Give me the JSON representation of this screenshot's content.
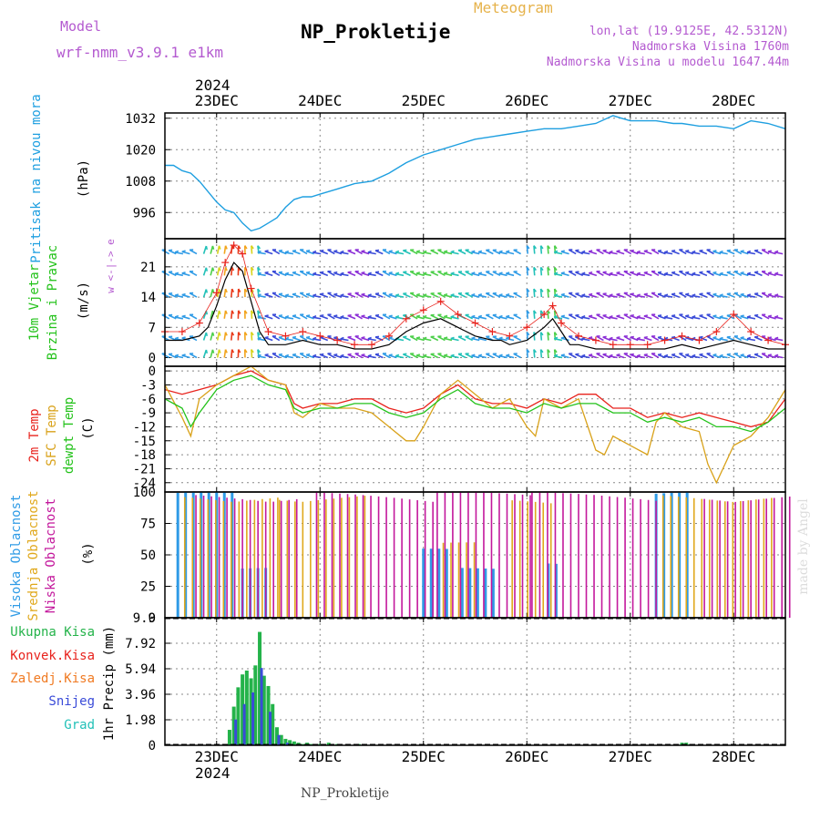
{
  "header": {
    "model_label": "Model",
    "model_name": "wrf-nmm_v3.9.1  e1km",
    "meteogram_label": "Meteogram",
    "station_title": "NP_Prokletije",
    "lonlat": "lon,lat (19.9125E, 42.5312N)",
    "elevation": "Nadmorska Visina 1760m",
    "model_elevation": "Nadmorska Visina u modelu 1647.44m"
  },
  "footer": {
    "station": "NP_Prokletije",
    "credit": "made by Angel"
  },
  "colors": {
    "pressure": "#1e9fe0",
    "temp2m": "#e8231d",
    "sfc_temp": "#d9a21a",
    "dewpt": "#23c21a",
    "high_cloud": "#2f9be6",
    "mid_cloud": "#e0a81c",
    "low_cloud": "#c3189c",
    "total_precip": "#24b34a",
    "conv_precip": "#e8231d",
    "frozen_precip": "#f07a22",
    "snow": "#3a4bd8",
    "graupel": "#22c1b8"
  },
  "time_axis": {
    "year": "2024",
    "days": [
      "23DEC",
      "24DEC",
      "25DEC",
      "26DEC",
      "27DEC",
      "28DEC"
    ],
    "day_offsets_h": [
      12,
      36,
      60,
      84,
      108,
      132
    ],
    "range_h": [
      0,
      144
    ]
  },
  "chart_data": [
    {
      "type": "line",
      "title": "",
      "ylabel_side": "Pritisak na nivou mora",
      "ylabel_unit": "(hPa)",
      "yticks": [
        "1032",
        "1020",
        "1008",
        "996"
      ],
      "ytick_values": [
        1032,
        1020,
        1008,
        996
      ],
      "ylim": [
        986,
        1034
      ],
      "grid": true,
      "series": [
        {
          "x_h": [
            0,
            2,
            4,
            6,
            8,
            10,
            12,
            14,
            16,
            18,
            20,
            22,
            24,
            26,
            28,
            30,
            32,
            34,
            36,
            40,
            44,
            48,
            52,
            56,
            60,
            64,
            68,
            72,
            76,
            80,
            84,
            88,
            92,
            96,
            100,
            104,
            106,
            108,
            110,
            114,
            118,
            120,
            124,
            128,
            132,
            136,
            140,
            144
          ],
          "values": [
            1014,
            1014,
            1012,
            1011,
            1008,
            1004,
            1000,
            997,
            996,
            992,
            989,
            990,
            992,
            994,
            998,
            1001,
            1002,
            1002,
            1003,
            1005,
            1007,
            1008,
            1011,
            1015,
            1018,
            1020,
            1022,
            1024,
            1025,
            1026,
            1027,
            1028,
            1028,
            1029,
            1030,
            1033,
            1032,
            1031,
            1031,
            1031,
            1030,
            1030,
            1029,
            1029,
            1028,
            1031,
            1030,
            1028
          ]
        }
      ]
    },
    {
      "type": "line",
      "title": "",
      "ylabel_side": [
        "10m Vjetar",
        "Brzina i Pravac"
      ],
      "ylabel_unit": "(m/s)",
      "direction_key": "w <-|-> e",
      "yticks": [
        "21",
        "14",
        "7",
        "0"
      ],
      "ytick_values": [
        21,
        14,
        7,
        0
      ],
      "ylim": [
        -2,
        27.5
      ],
      "grid": true,
      "series": [
        {
          "name": "wind speed",
          "x_h": [
            0,
            4,
            8,
            10,
            12,
            14,
            16,
            18,
            20,
            22,
            24,
            28,
            32,
            36,
            40,
            44,
            48,
            52,
            56,
            60,
            64,
            68,
            72,
            76,
            78,
            80,
            84,
            88,
            90,
            92,
            94,
            96,
            100,
            104,
            108,
            112,
            116,
            120,
            124,
            128,
            132,
            136,
            140,
            144
          ],
          "values": [
            4,
            4,
            5,
            7,
            12,
            18,
            22,
            20,
            13,
            6,
            3,
            3,
            4,
            3,
            3,
            2,
            2,
            3,
            6,
            8,
            9,
            7,
            5,
            4,
            4,
            3,
            4,
            7,
            9,
            6,
            3,
            3,
            2,
            2,
            2,
            2,
            2,
            3,
            2,
            3,
            4,
            3,
            2,
            2
          ]
        },
        {
          "name": "wind gust",
          "x_h": [
            0,
            4,
            8,
            12,
            14,
            16,
            18,
            20,
            24,
            28,
            32,
            36,
            40,
            44,
            48,
            52,
            56,
            60,
            64,
            68,
            72,
            76,
            80,
            84,
            88,
            90,
            92,
            96,
            100,
            104,
            108,
            112,
            116,
            120,
            124,
            128,
            132,
            136,
            140,
            144
          ],
          "values": [
            6,
            6,
            8,
            15,
            22,
            26,
            24,
            16,
            6,
            5,
            6,
            5,
            4,
            3,
            3,
            5,
            9,
            11,
            13,
            10,
            8,
            6,
            5,
            7,
            10,
            12,
            8,
            5,
            4,
            3,
            3,
            3,
            4,
            5,
            4,
            6,
            10,
            6,
            4,
            3
          ]
        }
      ]
    },
    {
      "type": "line",
      "title": "",
      "ylabel_side": [
        "2m Temp",
        "SFC Temp",
        "dewpt Temp"
      ],
      "ylabel_unit": "(C)",
      "yticks": [
        "0",
        "-3",
        "-6",
        "-9",
        "-12",
        "-15",
        "-18",
        "-21",
        "-24"
      ],
      "ytick_values": [
        0,
        -3,
        -6,
        -9,
        -12,
        -15,
        -18,
        -21,
        -24
      ],
      "ylim": [
        -26,
        1
      ],
      "grid": true,
      "series": [
        {
          "name": "2m Temp",
          "x_h": [
            0,
            4,
            8,
            12,
            16,
            20,
            24,
            28,
            30,
            32,
            36,
            40,
            44,
            48,
            52,
            56,
            60,
            64,
            68,
            72,
            76,
            80,
            84,
            88,
            92,
            96,
            100,
            104,
            108,
            112,
            116,
            120,
            124,
            128,
            132,
            136,
            140,
            144
          ],
          "values": [
            -4,
            -5,
            -4,
            -3,
            -1,
            0,
            -2,
            -3,
            -7,
            -8,
            -7,
            -7,
            -6,
            -6,
            -8,
            -9,
            -8,
            -5,
            -3,
            -6,
            -7,
            -7,
            -8,
            -6,
            -7,
            -5,
            -5,
            -8,
            -8,
            -10,
            -9,
            -10,
            -9,
            -10,
            -11,
            -12,
            -11,
            -6
          ]
        },
        {
          "name": "SFC Temp",
          "x_h": [
            0,
            4,
            6,
            8,
            12,
            16,
            20,
            24,
            28,
            30,
            32,
            36,
            40,
            44,
            48,
            52,
            56,
            58,
            60,
            64,
            68,
            72,
            76,
            80,
            84,
            86,
            88,
            92,
            96,
            100,
            102,
            104,
            108,
            112,
            114,
            116,
            120,
            124,
            126,
            128,
            132,
            136,
            140,
            144
          ],
          "values": [
            -3,
            -10,
            -14,
            -6,
            -3,
            -1,
            1,
            -2,
            -3,
            -9,
            -10,
            -7,
            -8,
            -8,
            -9,
            -12,
            -15,
            -15,
            -12,
            -5,
            -2,
            -5,
            -8,
            -6,
            -12,
            -14,
            -6,
            -8,
            -6,
            -17,
            -18,
            -14,
            -16,
            -18,
            -11,
            -9,
            -12,
            -13,
            -20,
            -24,
            -16,
            -14,
            -10,
            -4
          ]
        },
        {
          "name": "dewpt Temp",
          "x_h": [
            0,
            4,
            6,
            8,
            12,
            16,
            20,
            24,
            28,
            30,
            32,
            36,
            40,
            44,
            48,
            52,
            56,
            60,
            64,
            68,
            72,
            76,
            80,
            84,
            88,
            92,
            96,
            100,
            104,
            108,
            112,
            116,
            120,
            124,
            128,
            132,
            136,
            140,
            144
          ],
          "values": [
            -6,
            -8,
            -12,
            -9,
            -4,
            -2,
            -1,
            -3,
            -4,
            -8,
            -9,
            -8,
            -8,
            -7,
            -7,
            -9,
            -10,
            -9,
            -6,
            -4,
            -7,
            -8,
            -8,
            -9,
            -7,
            -8,
            -7,
            -7,
            -9,
            -9,
            -11,
            -10,
            -11,
            -10,
            -12,
            -12,
            -13,
            -11,
            -8
          ]
        }
      ]
    },
    {
      "type": "bar",
      "title": "",
      "ylabel_side": [
        "Visoka Oblacnost",
        "Srednja Oblacnost",
        "Niska Oblacnost"
      ],
      "ylabel_unit": "(%)",
      "yticks": [
        "100",
        "75",
        "50",
        "25",
        "0"
      ],
      "ytick_values": [
        100,
        75,
        50,
        25,
        0
      ],
      "ylim": [
        0,
        100
      ],
      "grid": true,
      "series": [
        {
          "name": "Visoka Oblacnost",
          "segments": [
            [
              3,
              16,
              100
            ],
            [
              18,
              24,
              40
            ],
            [
              60,
              66,
              55
            ],
            [
              69,
              77,
              40
            ],
            [
              89,
              92,
              45
            ],
            [
              114,
              122,
              100
            ]
          ]
        },
        {
          "name": "Srednja Oblacnost",
          "segments": [
            [
              4,
              26,
              100
            ],
            [
              26,
              46,
              100
            ],
            [
              64,
              72,
              60
            ],
            [
              80,
              90,
              95
            ],
            [
              115,
              142,
              100
            ]
          ]
        },
        {
          "name": "Niska Oblacnost",
          "segments": [
            [
              6,
              30,
              100
            ],
            [
              34,
              62,
              100
            ],
            [
              62,
              84,
              100
            ],
            [
              84,
              114,
              100
            ],
            [
              124,
              144,
              100
            ]
          ]
        }
      ]
    },
    {
      "type": "bar",
      "title": "",
      "ylabel_side": [
        "Ukupna Kisa",
        "Konvek.Kisa",
        "Zaledj.Kisa",
        "Snijeg",
        "Grad"
      ],
      "ylabel_unit": "1hr Precip (mm)",
      "yticks": [
        "9.9",
        "7.92",
        "5.94",
        "3.96",
        "1.98",
        "0"
      ],
      "ytick_values": [
        9.9,
        7.92,
        5.94,
        3.96,
        1.98,
        0
      ],
      "ylim": [
        0,
        9.9
      ],
      "grid": true,
      "series": [
        {
          "name": "Ukupna Kisa",
          "x_h": [
            15,
            16,
            17,
            18,
            19,
            20,
            21,
            22,
            23,
            24,
            25,
            26,
            27,
            28,
            29,
            30,
            31,
            32,
            33,
            34,
            36,
            38,
            40,
            45,
            120,
            121,
            122
          ],
          "values": [
            1.2,
            3.0,
            4.5,
            5.5,
            5.8,
            5.2,
            6.2,
            8.8,
            5.4,
            4.6,
            3.2,
            1.4,
            0.8,
            0.5,
            0.4,
            0.3,
            0.2,
            0.1,
            0.2,
            0.1,
            0.1,
            0.2,
            0.1,
            0.1,
            0.2,
            0.2,
            0.1
          ]
        },
        {
          "name": "Snijeg",
          "x_h": [
            16,
            18,
            20,
            22,
            24,
            26,
            28
          ],
          "values": [
            2.0,
            3.2,
            4.1,
            6.0,
            2.6,
            0.8,
            0.2
          ]
        }
      ]
    }
  ]
}
